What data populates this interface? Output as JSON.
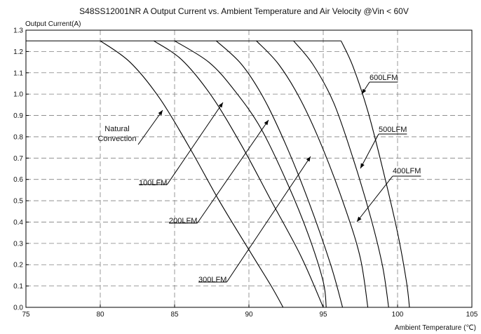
{
  "chart_data": {
    "type": "line",
    "title": "S48SS12001NR A Output Current vs. Ambient Temperature and Air Velocity @Vin < 60V",
    "ylabel": "Output Current(A)",
    "xlabel": "Ambient Temperature (℃)",
    "xlim": [
      75,
      105
    ],
    "ylim": [
      0,
      1.3
    ],
    "x_ticks": [
      "75",
      "80",
      "85",
      "90",
      "95",
      "100",
      "105"
    ],
    "y_ticks": [
      "0.0",
      "0.1",
      "0.2",
      "0.3",
      "0.4",
      "0.5",
      "0.6",
      "0.7",
      "0.8",
      "0.9",
      "1.0",
      "1.1",
      "1.2",
      "1.3"
    ],
    "grid": true,
    "max_current": 1.25,
    "series": [
      {
        "name": "Natural Convection",
        "points": [
          [
            80,
            1.25
          ],
          [
            82,
            1.15
          ],
          [
            84,
            0.98
          ],
          [
            86,
            0.75
          ],
          [
            88,
            0.5
          ],
          [
            90,
            0.27
          ],
          [
            91.5,
            0.1
          ],
          [
            92.3,
            0.0
          ]
        ]
      },
      {
        "name": "100LFM",
        "points": [
          [
            83.6,
            1.25
          ],
          [
            85.5,
            1.16
          ],
          [
            87.5,
            0.99
          ],
          [
            89.5,
            0.76
          ],
          [
            91.5,
            0.5
          ],
          [
            93.5,
            0.24
          ],
          [
            95,
            0.0
          ]
        ]
      },
      {
        "name": "200LFM",
        "points": [
          [
            85,
            1.25
          ],
          [
            87.3,
            1.15
          ],
          [
            89,
            1.02
          ],
          [
            90.8,
            0.84
          ],
          [
            92.6,
            0.58
          ],
          [
            94,
            0.34
          ],
          [
            95,
            0.12
          ],
          [
            95.2,
            0.0
          ]
        ]
      },
      {
        "name": "300LFM",
        "points": [
          [
            87.8,
            1.25
          ],
          [
            89.5,
            1.14
          ],
          [
            91,
            0.98
          ],
          [
            92.5,
            0.76
          ],
          [
            94,
            0.5
          ],
          [
            95.5,
            0.2
          ],
          [
            96.3,
            0.0
          ]
        ]
      },
      {
        "name": "400LFM",
        "points": [
          [
            90.5,
            1.25
          ],
          [
            92,
            1.14
          ],
          [
            93.5,
            0.97
          ],
          [
            95,
            0.74
          ],
          [
            96.5,
            0.46
          ],
          [
            97.5,
            0.23
          ],
          [
            98,
            0.0
          ]
        ]
      },
      {
        "name": "500LFM",
        "points": [
          [
            93,
            1.25
          ],
          [
            94.3,
            1.14
          ],
          [
            95.7,
            0.96
          ],
          [
            97,
            0.7
          ],
          [
            98.2,
            0.42
          ],
          [
            99,
            0.19
          ],
          [
            99.4,
            0.0
          ]
        ]
      },
      {
        "name": "600LFM",
        "points": [
          [
            96.2,
            1.25
          ],
          [
            97,
            1.13
          ],
          [
            98,
            0.92
          ],
          [
            99,
            0.65
          ],
          [
            100,
            0.35
          ],
          [
            100.6,
            0.12
          ],
          [
            100.8,
            0.0
          ]
        ]
      }
    ],
    "annotations": [
      {
        "lines": [
          "Natural",
          "Convection"
        ],
        "series": "Natural Convection"
      },
      {
        "lines": [
          "100LFM"
        ],
        "series": "100LFM"
      },
      {
        "lines": [
          "200LFM"
        ],
        "series": "200LFM"
      },
      {
        "lines": [
          "300LFM"
        ],
        "series": "300LFM"
      },
      {
        "lines": [
          "400LFM"
        ],
        "series": "400LFM"
      },
      {
        "lines": [
          "500LFM"
        ],
        "series": "500LFM"
      },
      {
        "lines": [
          "600LFM"
        ],
        "series": "600LFM"
      }
    ],
    "colors": {
      "line": "#000000",
      "grid": "#808080",
      "background": "#ffffff"
    }
  }
}
